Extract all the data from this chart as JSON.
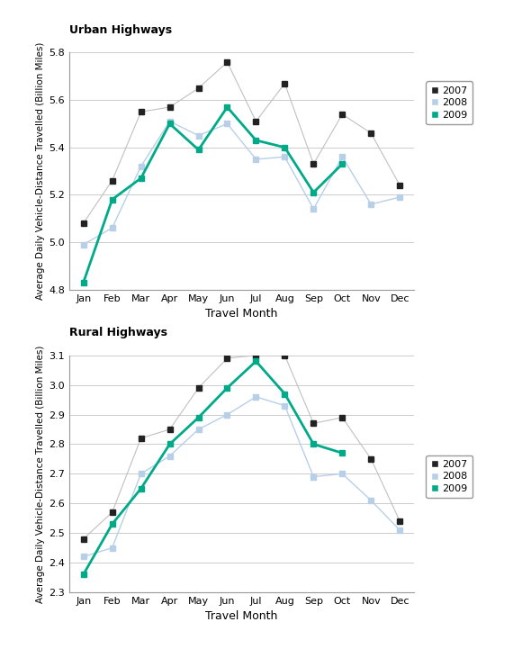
{
  "months": [
    "Jan",
    "Feb",
    "Mar",
    "Apr",
    "May",
    "Jun",
    "Jul",
    "Aug",
    "Sep",
    "Oct",
    "Nov",
    "Dec"
  ],
  "urban_2007": [
    5.08,
    5.26,
    5.55,
    5.57,
    5.65,
    5.76,
    5.51,
    5.67,
    5.33,
    5.54,
    5.46,
    5.24
  ],
  "urban_2008": [
    4.99,
    5.06,
    5.32,
    5.51,
    5.45,
    5.5,
    5.35,
    5.36,
    5.14,
    5.36,
    5.16,
    5.19
  ],
  "urban_2009": [
    4.83,
    5.18,
    5.27,
    5.5,
    5.39,
    5.57,
    5.43,
    5.4,
    5.21,
    5.33,
    null,
    null
  ],
  "rural_2007": [
    2.48,
    2.57,
    2.82,
    2.85,
    2.99,
    3.09,
    3.1,
    3.1,
    2.87,
    2.89,
    2.75,
    2.54
  ],
  "rural_2008": [
    2.42,
    2.45,
    2.7,
    2.76,
    2.85,
    2.9,
    2.96,
    2.93,
    2.69,
    2.7,
    2.61,
    2.51
  ],
  "rural_2009": [
    2.36,
    2.53,
    2.65,
    2.8,
    2.89,
    2.99,
    3.08,
    2.97,
    2.8,
    2.77,
    null,
    null
  ],
  "urban_ylim": [
    4.8,
    5.8
  ],
  "urban_yticks": [
    4.8,
    5.0,
    5.2,
    5.4,
    5.6,
    5.8
  ],
  "rural_ylim": [
    2.3,
    3.1
  ],
  "rural_yticks": [
    2.3,
    2.4,
    2.5,
    2.6,
    2.7,
    2.8,
    2.9,
    3.0,
    3.1
  ],
  "color_2007": "#222222",
  "color_2008": "#b8cfe8",
  "color_2009": "#00aa88",
  "line_2007": "#c0c0c0",
  "line_2008": "#b8cfe8",
  "title_urban": "Urban Highways",
  "title_rural": "Rural Highways",
  "ylabel": "Average Daily Vehicle-Distance Travelled (Billion Miles)",
  "xlabel": "Travel Month",
  "legend_labels": [
    "2007",
    "2008",
    "2009"
  ]
}
